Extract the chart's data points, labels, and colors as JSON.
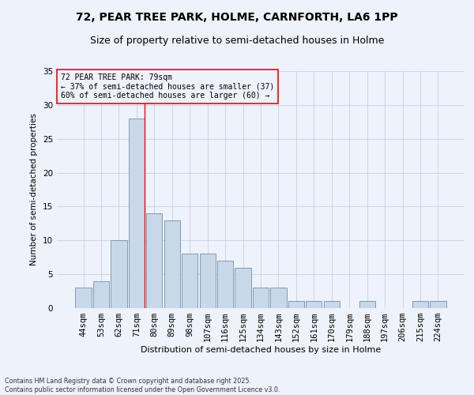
{
  "title1": "72, PEAR TREE PARK, HOLME, CARNFORTH, LA6 1PP",
  "title2": "Size of property relative to semi-detached houses in Holme",
  "xlabel": "Distribution of semi-detached houses by size in Holme",
  "ylabel": "Number of semi-detached properties",
  "categories": [
    "44sqm",
    "53sqm",
    "62sqm",
    "71sqm",
    "80sqm",
    "89sqm",
    "98sqm",
    "107sqm",
    "116sqm",
    "125sqm",
    "134sqm",
    "143sqm",
    "152sqm",
    "161sqm",
    "170sqm",
    "179sqm",
    "188sqm",
    "197sqm",
    "206sqm",
    "215sqm",
    "224sqm"
  ],
  "values": [
    3,
    4,
    10,
    28,
    14,
    13,
    8,
    8,
    7,
    6,
    3,
    3,
    1,
    1,
    1,
    0,
    1,
    0,
    0,
    1,
    1
  ],
  "bar_color": "#c8d8e8",
  "bar_edge_color": "#7090b0",
  "red_line_x": 3,
  "annotation_label": "72 PEAR TREE PARK: 79sqm",
  "annotation_smaller": "← 37% of semi-detached houses are smaller (37)",
  "annotation_larger": "60% of semi-detached houses are larger (60) →",
  "ylim": [
    0,
    35
  ],
  "yticks": [
    0,
    5,
    10,
    15,
    20,
    25,
    30,
    35
  ],
  "footer1": "Contains HM Land Registry data © Crown copyright and database right 2025.",
  "footer2": "Contains public sector information licensed under the Open Government Licence v3.0.",
  "background_color": "#eef2fb",
  "grid_color": "#c8d0e0",
  "title_fontsize": 10,
  "subtitle_fontsize": 9
}
